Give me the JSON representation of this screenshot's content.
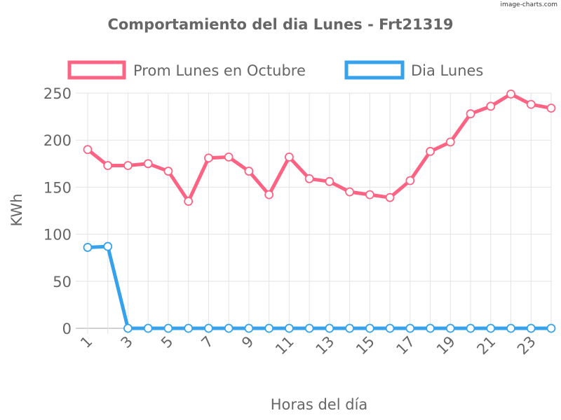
{
  "watermark": "image-charts.com",
  "chart_data": {
    "type": "line",
    "title": "Comportamiento del dia Lunes - Frt21319",
    "xlabel": "Horas del día",
    "ylabel": "KWh",
    "x": [
      1,
      2,
      3,
      4,
      5,
      6,
      7,
      8,
      9,
      10,
      11,
      12,
      13,
      14,
      15,
      16,
      17,
      18,
      19,
      20,
      21,
      22,
      23,
      24
    ],
    "x_tick_labels": [
      "1",
      "3",
      "5",
      "7",
      "9",
      "11",
      "13",
      "15",
      "17",
      "19",
      "21",
      "23"
    ],
    "y_ticks": [
      0,
      50,
      100,
      150,
      200,
      250
    ],
    "ylim": [
      0,
      250
    ],
    "grid": true,
    "legend_position": "top",
    "series": [
      {
        "name": "Prom Lunes en Octubre",
        "color": "#ff6384",
        "values": [
          190,
          173,
          173,
          175,
          167,
          135,
          181,
          182,
          167,
          142,
          182,
          159,
          156,
          145,
          142,
          139,
          157,
          188,
          198,
          228,
          236,
          249,
          238,
          234
        ]
      },
      {
        "name": "Dia Lunes",
        "color": "#36a2eb",
        "values": [
          86,
          87,
          0,
          0,
          0,
          0,
          0,
          0,
          0,
          0,
          0,
          0,
          0,
          0,
          0,
          0,
          0,
          0,
          0,
          0,
          0,
          0,
          0,
          0
        ]
      }
    ]
  }
}
